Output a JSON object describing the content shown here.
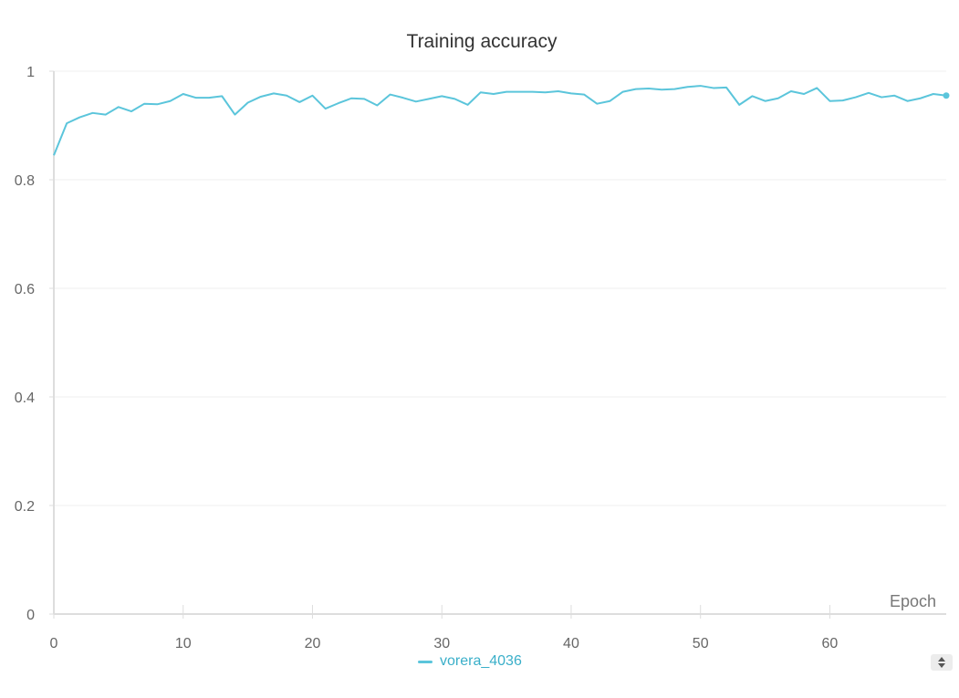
{
  "chart_data": {
    "type": "line",
    "title": "Training accuracy",
    "xlabel": "Epoch",
    "ylabel": "",
    "xlim": [
      0,
      69
    ],
    "ylim": [
      0,
      1
    ],
    "x_ticks": [
      "0",
      "10",
      "20",
      "30",
      "40",
      "50",
      "60"
    ],
    "y_ticks": [
      "0",
      "0.2",
      "0.4",
      "0.6",
      "0.8",
      "1"
    ],
    "grid": true,
    "legend_position": "bottom-center",
    "series": [
      {
        "name": "vorera_4036",
        "color": "#5BC5DB",
        "x": [
          0,
          1,
          2,
          3,
          4,
          5,
          6,
          7,
          8,
          9,
          10,
          11,
          12,
          13,
          14,
          15,
          16,
          17,
          18,
          19,
          20,
          21,
          22,
          23,
          24,
          25,
          26,
          27,
          28,
          29,
          30,
          31,
          32,
          33,
          34,
          35,
          36,
          37,
          38,
          39,
          40,
          41,
          42,
          43,
          44,
          45,
          46,
          47,
          48,
          49,
          50,
          51,
          52,
          53,
          54,
          55,
          56,
          57,
          58,
          59,
          60,
          61,
          62,
          63,
          64,
          65,
          66,
          67,
          68,
          69
        ],
        "y": [
          0.845,
          0.904,
          0.915,
          0.923,
          0.92,
          0.934,
          0.926,
          0.94,
          0.939,
          0.945,
          0.958,
          0.951,
          0.951,
          0.954,
          0.92,
          0.942,
          0.953,
          0.959,
          0.955,
          0.943,
          0.955,
          0.931,
          0.941,
          0.95,
          0.949,
          0.937,
          0.957,
          0.951,
          0.944,
          0.949,
          0.954,
          0.949,
          0.938,
          0.961,
          0.958,
          0.962,
          0.962,
          0.962,
          0.961,
          0.963,
          0.959,
          0.957,
          0.94,
          0.945,
          0.962,
          0.967,
          0.968,
          0.966,
          0.967,
          0.971,
          0.973,
          0.969,
          0.97,
          0.938,
          0.954,
          0.945,
          0.95,
          0.963,
          0.958,
          0.969,
          0.945,
          0.946,
          0.952,
          0.96,
          0.952,
          0.955,
          0.945,
          0.95,
          0.958,
          0.955
        ]
      }
    ]
  }
}
